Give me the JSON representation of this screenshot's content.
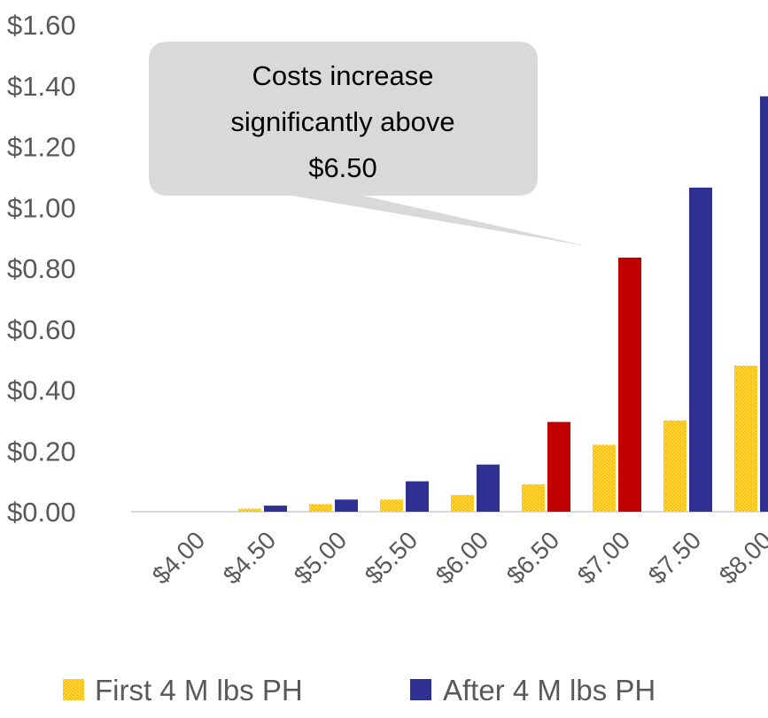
{
  "chart_data": {
    "type": "bar",
    "categories": [
      "$4.00",
      "$4.50",
      "$5.00",
      "$5.50",
      "$6.00",
      "$6.50",
      "$7.00",
      "$7.50",
      "$8.00"
    ],
    "series": [
      {
        "name": "First 4 M lbs PH",
        "values": [
          0.0,
          0.01,
          0.025,
          0.04,
          0.055,
          0.09,
          0.22,
          0.3,
          0.48
        ]
      },
      {
        "name": "After 4 M lbs PH",
        "values": [
          0.0,
          0.02,
          0.04,
          0.1,
          0.155,
          0.295,
          0.835,
          1.065,
          1.365
        ]
      }
    ],
    "highlight": {
      "series": 1,
      "indices": [
        5,
        6
      ],
      "color": "#c00000"
    },
    "yticks": [
      "$0.00",
      "$0.20",
      "$0.40",
      "$0.60",
      "$0.80",
      "$1.00",
      "$1.20",
      "$1.40",
      "$1.60"
    ],
    "ylim": [
      0,
      1.6
    ],
    "legend_position": "bottom",
    "annotation": {
      "lines": [
        "Costs increase",
        "significantly above",
        "$6.50"
      ]
    },
    "colors": {
      "first": "#ffc000",
      "after": "#2e3192",
      "highlight": "#c00000",
      "callout_fill": "#d9d9d9",
      "axis": "#d9d9d9"
    }
  }
}
